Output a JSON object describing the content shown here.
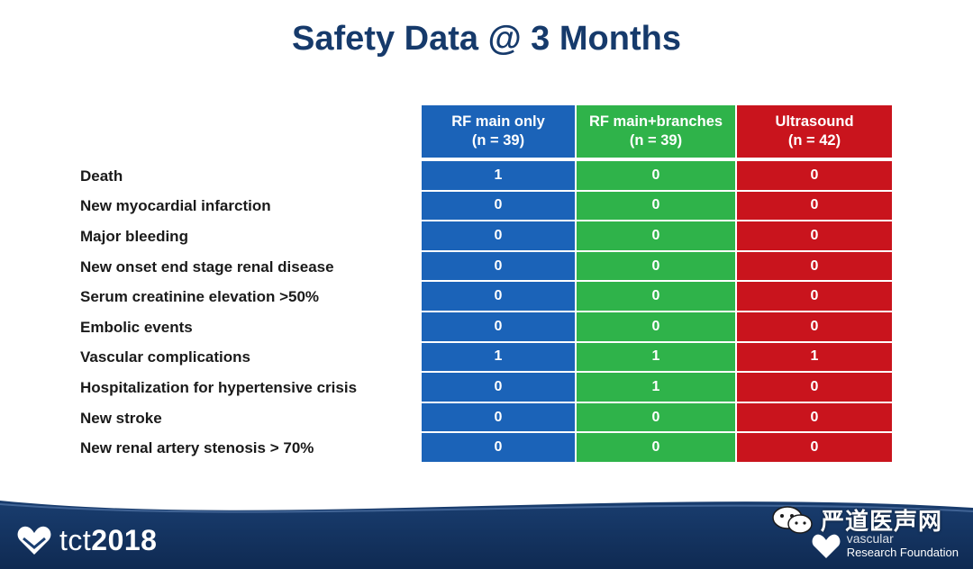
{
  "title": "Safety Data @ 3 Months",
  "colors": {
    "blue": "#1b63b8",
    "green": "#2fb34a",
    "red": "#c9141d",
    "title": "#163a6b"
  },
  "columns": [
    {
      "line1": "RF main only",
      "line2": "(n = 39)"
    },
    {
      "line1": "RF main+branches",
      "line2": "(n = 39)"
    },
    {
      "line1": "Ultrasound",
      "line2": "(n = 42)"
    }
  ],
  "rows": [
    {
      "label": "Death",
      "values": [
        "1",
        "0",
        "0"
      ]
    },
    {
      "label": "New myocardial infarction",
      "values": [
        "0",
        "0",
        "0"
      ]
    },
    {
      "label": "Major bleeding",
      "values": [
        "0",
        "0",
        "0"
      ]
    },
    {
      "label": "New onset end stage renal disease",
      "values": [
        "0",
        "0",
        "0"
      ]
    },
    {
      "label": "Serum creatinine elevation >50%",
      "values": [
        "0",
        "0",
        "0"
      ]
    },
    {
      "label": "Embolic events",
      "values": [
        "0",
        "0",
        "0"
      ]
    },
    {
      "label": "Vascular complications",
      "values": [
        "1",
        "1",
        "1"
      ]
    },
    {
      "label": "Hospitalization for hypertensive crisis",
      "values": [
        "0",
        "1",
        "0"
      ]
    },
    {
      "label": "New stroke",
      "values": [
        "0",
        "0",
        "0"
      ]
    },
    {
      "label": "New renal artery stenosis > 70%",
      "values": [
        "0",
        "0",
        "0"
      ]
    }
  ],
  "footer": {
    "brand_tct": "tct",
    "brand_year": "2018",
    "crf_line1": "vascular",
    "crf_line2": "Research Foundation",
    "watermark": "严道医声网"
  },
  "icons": [
    "heart-logo-icon",
    "crf-logo-icon",
    "wechat-icon"
  ]
}
